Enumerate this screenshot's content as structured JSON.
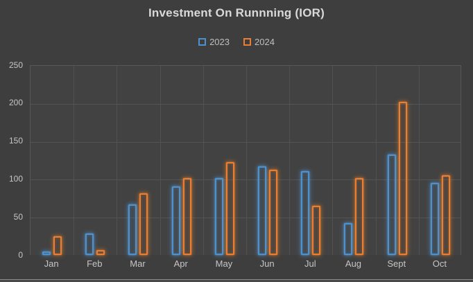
{
  "chart_data": {
    "type": "bar",
    "title": "Investment On Runnning (IOR)",
    "categories": [
      "Jan",
      "Feb",
      "Mar",
      "Apr",
      "May",
      "Jun",
      "Jul",
      "Aug",
      "Sept",
      "Oct"
    ],
    "series": [
      {
        "name": "2023",
        "color": "#4D91CE",
        "values": [
          5,
          28,
          67,
          90,
          101,
          117,
          110,
          42,
          132,
          95
        ]
      },
      {
        "name": "2024",
        "color": "#ED7D31",
        "values": [
          25,
          6,
          81,
          101,
          122,
          112,
          65,
          101,
          202,
          105
        ]
      }
    ],
    "ylim": [
      0,
      250
    ],
    "yticks": [
      0,
      50,
      100,
      150,
      200,
      250
    ],
    "xlabel": "",
    "ylabel": "",
    "grid": true,
    "legend_position": "top-center",
    "background": "#3E3E3E",
    "plot_background": "#424242"
  }
}
